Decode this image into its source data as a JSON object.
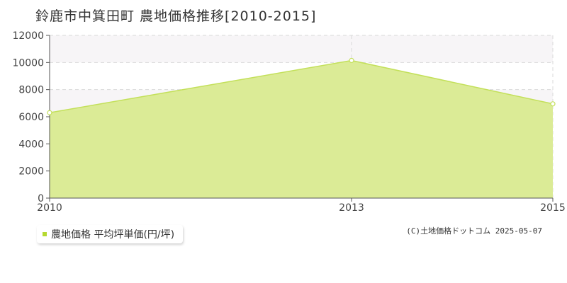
{
  "title": "鈴鹿市中箕田町 農地価格推移[2010-2015]",
  "legend": {
    "label": "農地価格 平均坪単価(円/坪)"
  },
  "copyright": "(C)土地価格ドットコム 2025-05-07",
  "colors": {
    "area_fill": "#dbeb96",
    "line": "#c3e05a",
    "legend_swatch": "#b5d930",
    "grid": "#d9d9d9",
    "band": "#f7f5f7",
    "axis": "#555555"
  },
  "chart_data": {
    "type": "area",
    "x": [
      2010,
      2013,
      2015
    ],
    "y": [
      6300,
      10150,
      6950
    ],
    "y_ticks": [
      0,
      2000,
      4000,
      6000,
      8000,
      10000,
      12000
    ],
    "x_ticks": [
      2010,
      2013,
      2015
    ],
    "xlim": [
      2010,
      2015
    ],
    "ylim": [
      0,
      12000
    ],
    "grid": true,
    "legend": "bottom-left",
    "series": [
      {
        "name": "農地価格 平均坪単価(円/坪)",
        "values": [
          6300,
          10150,
          6950
        ]
      }
    ]
  }
}
